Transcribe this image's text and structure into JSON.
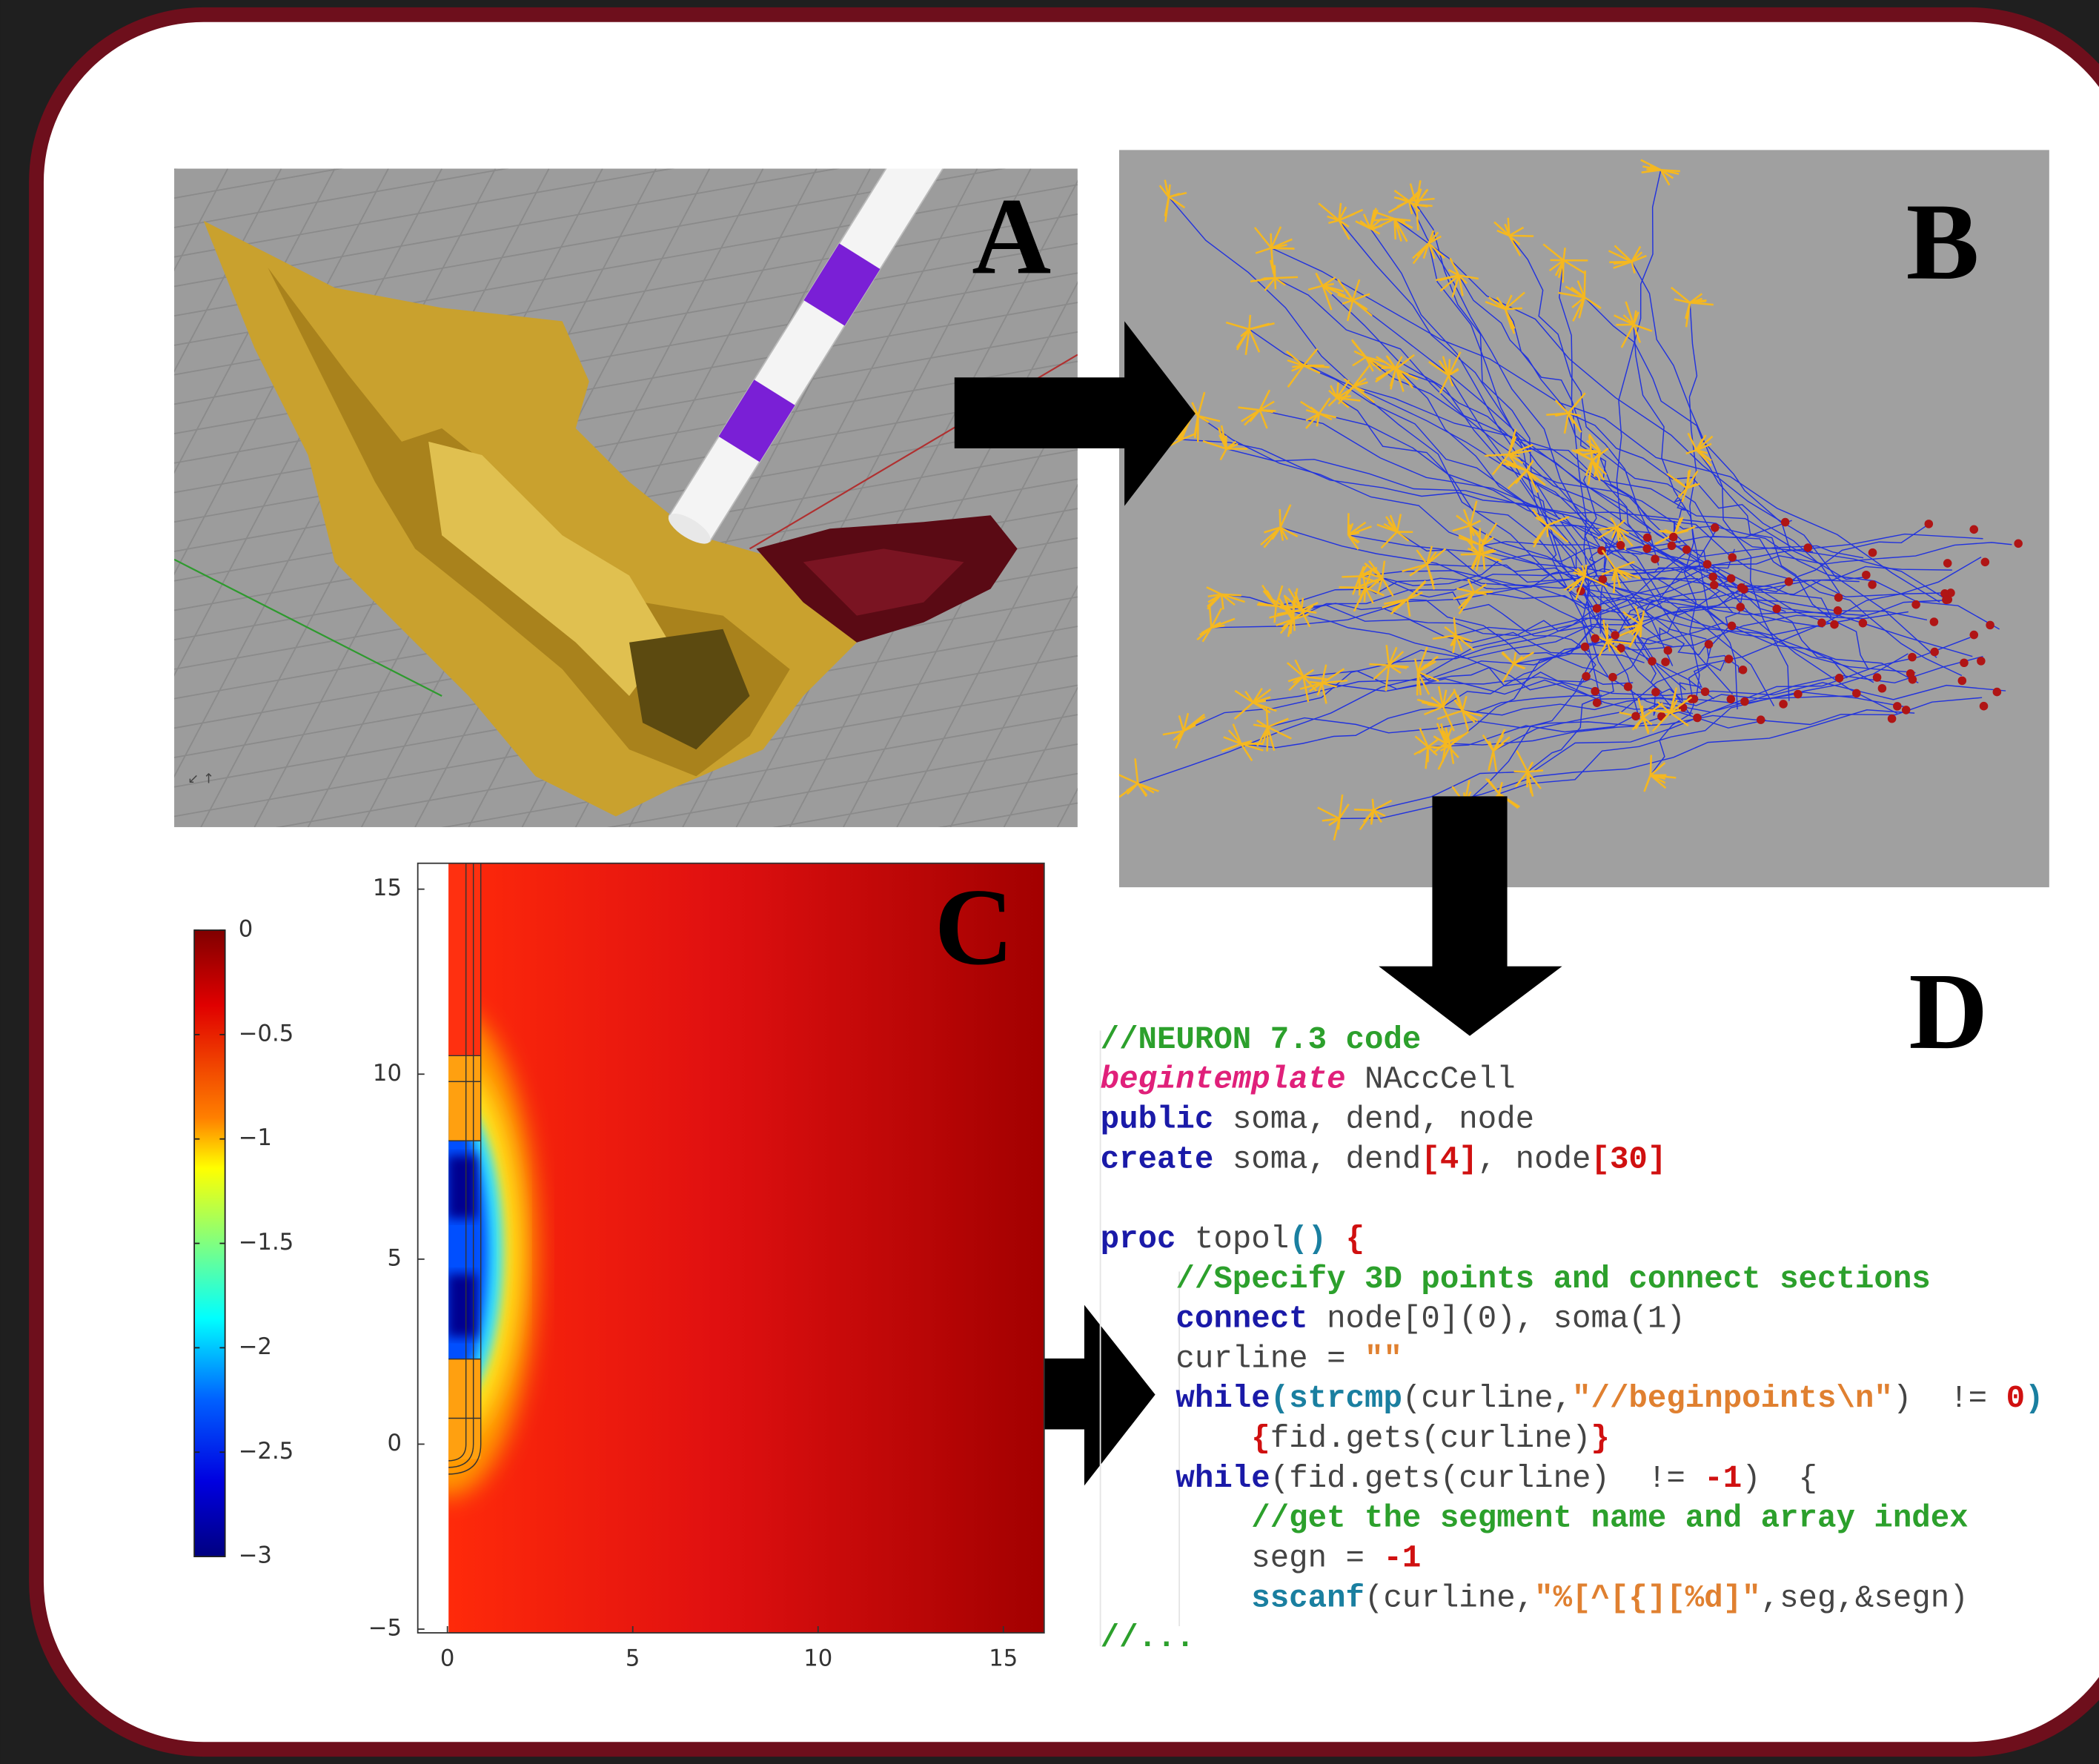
{
  "panel_labels": [
    "A",
    "B",
    "C",
    "D"
  ],
  "panel_c": {
    "colorbar": {
      "lim": [
        -3,
        0
      ],
      "ticks": [
        0,
        {
          "value": -0.5,
          "label": "−0.5"
        },
        {
          "value": -1,
          "label": "−1"
        },
        {
          "value": -1.5,
          "label": "−1.5"
        },
        {
          "value": -2,
          "label": "−2"
        },
        {
          "value": -2.5,
          "label": "−2.5"
        },
        {
          "value": -3,
          "label": "−3"
        }
      ]
    },
    "xlim": [
      -0.8,
      16.1
    ],
    "ylim": [
      -5.1,
      15.7
    ],
    "xticks": [
      0,
      5,
      10,
      15
    ],
    "yticks": [
      {
        "value": -5,
        "label": "−5"
      },
      0,
      5,
      10,
      15
    ]
  },
  "panel_d": {
    "code_blocks": [
      [
        [
          {
            "text": "//NEURON 7.3 code",
            "color": "#2ca02c"
          }
        ],
        [
          {
            "text": "begintemplate",
            "color": "#e0207a",
            "italic": true
          },
          {
            "text": " NAccCell",
            "color": "#444444"
          }
        ],
        [
          {
            "text": "public",
            "color": "#1a1aa8"
          },
          {
            "text": " soma, dend, node",
            "color": "#444444"
          }
        ],
        [
          {
            "text": "create",
            "color": "#1a1aa8"
          },
          {
            "text": " soma, dend",
            "color": "#444444"
          },
          {
            "text": "[4]",
            "color": "#d01010"
          },
          {
            "text": ", node",
            "color": "#444444"
          },
          {
            "text": "[30]",
            "color": "#d01010"
          }
        ]
      ],
      [
        [
          {
            "text": "proc",
            "color": "#1a1aa8"
          },
          {
            "text": " topol",
            "color": "#444444"
          },
          {
            "text": "()",
            "color": "#1a7fa0"
          },
          {
            "text": " {",
            "color": "#d01010"
          }
        ],
        [
          {
            "text": "    //Specify 3D points and connect sections",
            "color": "#2ca02c"
          }
        ],
        [
          {
            "text": "    connect",
            "color": "#1a1aa8"
          },
          {
            "text": " node[0](0), soma(1)",
            "color": "#444444"
          }
        ],
        [
          {
            "text": "    curline = ",
            "color": "#444444"
          },
          {
            "text": "\"\"",
            "color": "#e08030"
          }
        ],
        [
          {
            "text": "    while",
            "color": "#1a1aa8"
          },
          {
            "text": "(strcmp",
            "color": "#1a7fa0"
          },
          {
            "text": "(curline,",
            "color": "#444444"
          },
          {
            "text": "\"//beginpoints\\n\"",
            "color": "#e08030"
          },
          {
            "text": ")  != ",
            "color": "#444444"
          },
          {
            "text": "0",
            "color": "#d01010"
          },
          {
            "text": ")",
            "color": "#1a7fa0"
          }
        ],
        [
          {
            "text": "        {",
            "color": "#d01010"
          },
          {
            "text": "fid.gets(curline)",
            "color": "#444444"
          },
          {
            "text": "}",
            "color": "#d01010"
          }
        ],
        [
          {
            "text": "    while",
            "color": "#1a1aa8"
          },
          {
            "text": "(fid.gets(curline)  != ",
            "color": "#444444"
          },
          {
            "text": "-1",
            "color": "#d01010"
          },
          {
            "text": ")  {",
            "color": "#444444"
          }
        ],
        [
          {
            "text": "        //get the segment name and array index",
            "color": "#2ca02c"
          }
        ],
        [
          {
            "text": "        segn = ",
            "color": "#444444"
          },
          {
            "text": "-1",
            "color": "#d01010"
          }
        ],
        [
          {
            "text": "        sscanf",
            "color": "#1a7fa0"
          },
          {
            "text": "(curline,",
            "color": "#444444"
          },
          {
            "text": "\"%[^[{][%d]\"",
            "color": "#e08030"
          },
          {
            "text": ",seg,&segn)",
            "color": "#444444"
          }
        ],
        [
          {
            "text": "//...",
            "color": "#2ca02c"
          }
        ]
      ]
    ]
  }
}
